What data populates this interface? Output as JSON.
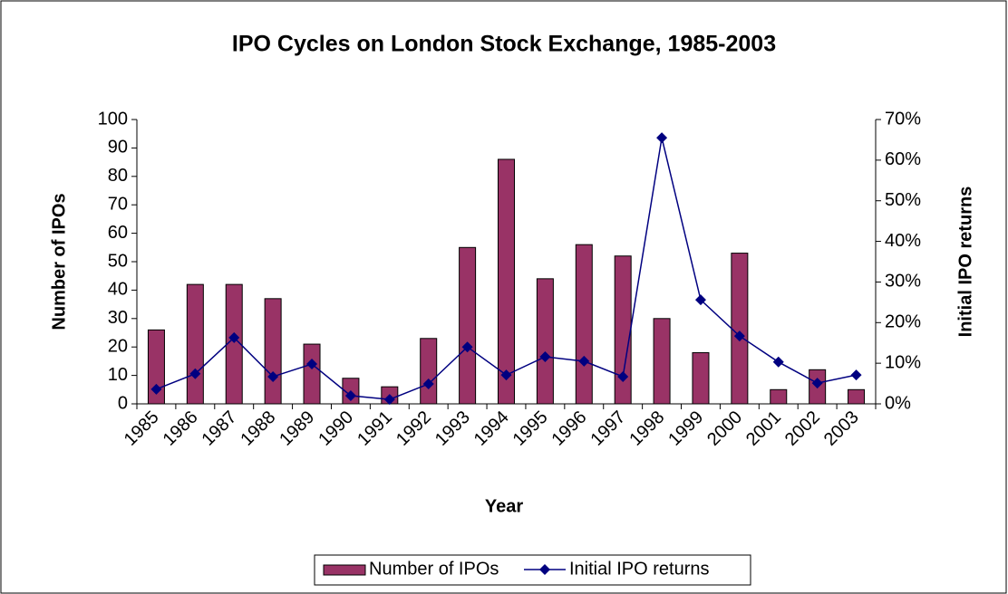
{
  "chart_data": {
    "type": "bar-line",
    "title": "IPO Cycles on London Stock Exchange, 1985-2003",
    "x_label": "Year",
    "y_label": "Number of IPOs",
    "y2_label": "Initial IPO returns",
    "categories": [
      "1985",
      "1986",
      "1987",
      "1988",
      "1989",
      "1990",
      "1991",
      "1992",
      "1993",
      "1994",
      "1995",
      "1996",
      "1997",
      "1998",
      "1999",
      "2000",
      "2001",
      "2002",
      "2003"
    ],
    "series": [
      {
        "name": "Number of IPOs",
        "type": "bar",
        "color": "#993366",
        "values": [
          26,
          42,
          42,
          37,
          21,
          9,
          6,
          23,
          55,
          86,
          44,
          56,
          52,
          30,
          18,
          53,
          5,
          12,
          5
        ]
      },
      {
        "name": "Initial IPO returns",
        "type": "line",
        "axis": "y2",
        "color": "#000080",
        "values": [
          3.6,
          7.4,
          16.3,
          6.7,
          9.8,
          2.0,
          1.1,
          4.9,
          14.0,
          7.1,
          11.6,
          10.5,
          6.7,
          65.5,
          25.6,
          16.7,
          10.3,
          5.1,
          7.1
        ]
      }
    ],
    "ylim": [
      0,
      100
    ],
    "yticks": [
      0,
      10,
      20,
      30,
      40,
      50,
      60,
      70,
      80,
      90,
      100
    ],
    "y2lim": [
      0,
      70
    ],
    "y2ticks": [
      {
        "value": 0,
        "label": "0%"
      },
      {
        "value": 10,
        "label": "10%"
      },
      {
        "value": 20,
        "label": "20%"
      },
      {
        "value": 30,
        "label": "30%"
      },
      {
        "value": 40,
        "label": "40%"
      },
      {
        "value": 50,
        "label": "50%"
      },
      {
        "value": 60,
        "label": "60%"
      },
      {
        "value": 70,
        "label": "70%"
      }
    ],
    "legend": "bottom"
  }
}
